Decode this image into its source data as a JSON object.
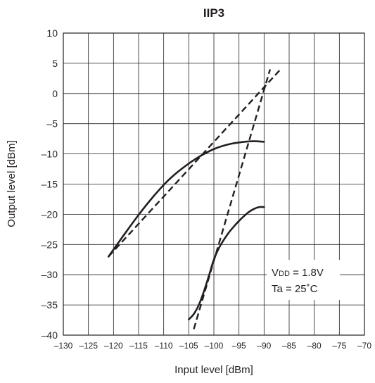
{
  "chart_data": {
    "type": "line",
    "title": "IIP3",
    "xlabel": "Input level [dBm]",
    "ylabel": "Output level [dBm]",
    "xlim": [
      -130,
      -70
    ],
    "ylim": [
      -40,
      10
    ],
    "grid": true,
    "xticks": [
      -130,
      -125,
      -120,
      -115,
      -110,
      -105,
      -100,
      -95,
      -90,
      -85,
      -80,
      -75,
      -70
    ],
    "xtick_labels": [
      "–130",
      "–125",
      "–120",
      "–115",
      "–110",
      "–105",
      "–100",
      "–95",
      "–90",
      "–85",
      "–80",
      "–75",
      "–70"
    ],
    "yticks": [
      10,
      5,
      0,
      -5,
      -10,
      -15,
      -20,
      -25,
      -30,
      -35,
      -40
    ],
    "ytick_labels": [
      "10",
      "5",
      "0",
      "–5",
      "–10",
      "–15",
      "–20",
      "–25",
      "–30",
      "–35",
      "–40"
    ],
    "annotation": {
      "line1_prefix": "V",
      "line1_sub": "DD",
      "line1_suffix": " = 1.8V",
      "line2": "Ta = 25˚C"
    },
    "series": [
      {
        "style": "solid",
        "x": [
          -121,
          -118,
          -115,
          -112,
          -109,
          -106,
          -103,
          -100,
          -97,
          -94,
          -92,
          -90
        ],
        "y": [
          -27,
          -23.5,
          -20.1,
          -17,
          -14.3,
          -12.2,
          -10.5,
          -9.2,
          -8.4,
          -8.0,
          -7.9,
          -8.0
        ]
      },
      {
        "style": "solid",
        "x": [
          -105,
          -104,
          -103,
          -102,
          -101,
          -100,
          -99,
          -98,
          -97,
          -96,
          -95,
          -94,
          -93,
          -92,
          -91,
          -90
        ],
        "y": [
          -37.4,
          -36.5,
          -35,
          -32.8,
          -30.2,
          -27.5,
          -25.6,
          -24.2,
          -23,
          -22,
          -21.1,
          -20.3,
          -19.6,
          -19.1,
          -18.8,
          -18.8
        ]
      },
      {
        "style": "dashed",
        "x": [
          -121,
          -86.5
        ],
        "y": [
          -27,
          4.2
        ]
      },
      {
        "style": "dashed",
        "x": [
          -104,
          -88.8
        ],
        "y": [
          -39,
          4
        ]
      }
    ]
  }
}
